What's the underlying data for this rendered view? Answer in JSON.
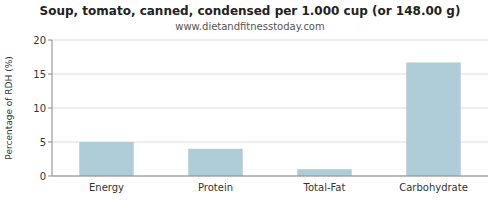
{
  "chart_data": {
    "type": "bar",
    "title": "Soup, tomato, canned, condensed per 1.000 cup (or 148.00 g)",
    "subtitle": "www.dietandfitnesstoday.com",
    "categories": [
      "Energy",
      "Protein",
      "Total-Fat",
      "Carbohydrate"
    ],
    "values": [
      5.0,
      4.0,
      1.0,
      16.7
    ],
    "color": "#aecdd8",
    "ylabel": "Percentage of RDH (%)",
    "ylim": [
      0,
      20
    ],
    "yticks": [
      0,
      5,
      10,
      15,
      20
    ],
    "grid": true
  }
}
